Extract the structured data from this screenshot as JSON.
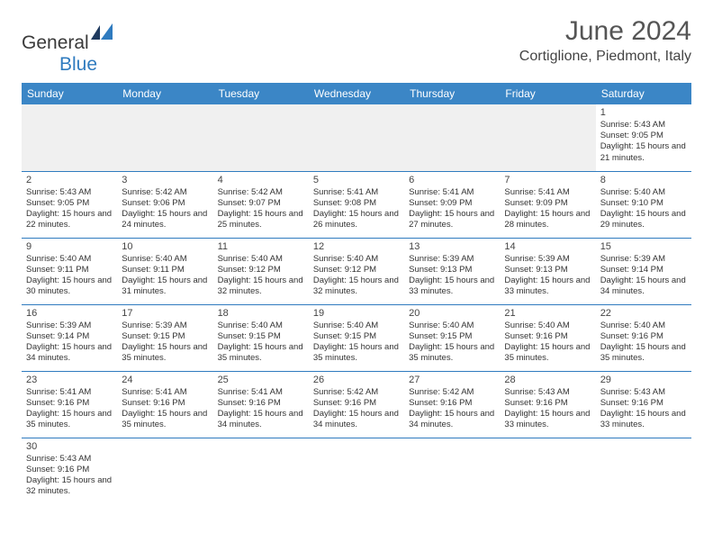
{
  "logo": {
    "textGray": "General",
    "textBlue": "Blue"
  },
  "header": {
    "title": "June 2024",
    "location": "Cortiglione, Piedmont, Italy"
  },
  "colors": {
    "headerBg": "#3b86c6",
    "rowBorder": "#2f7bbf",
    "blankBg": "#f0f0f0",
    "pageBg": "#ffffff"
  },
  "dayNames": [
    "Sunday",
    "Monday",
    "Tuesday",
    "Wednesday",
    "Thursday",
    "Friday",
    "Saturday"
  ],
  "weeks": [
    [
      null,
      null,
      null,
      null,
      null,
      null,
      {
        "n": "1",
        "sunrise": "Sunrise: 5:43 AM",
        "sunset": "Sunset: 9:05 PM",
        "daylight": "Daylight: 15 hours and 21 minutes."
      }
    ],
    [
      {
        "n": "2",
        "sunrise": "Sunrise: 5:43 AM",
        "sunset": "Sunset: 9:05 PM",
        "daylight": "Daylight: 15 hours and 22 minutes."
      },
      {
        "n": "3",
        "sunrise": "Sunrise: 5:42 AM",
        "sunset": "Sunset: 9:06 PM",
        "daylight": "Daylight: 15 hours and 24 minutes."
      },
      {
        "n": "4",
        "sunrise": "Sunrise: 5:42 AM",
        "sunset": "Sunset: 9:07 PM",
        "daylight": "Daylight: 15 hours and 25 minutes."
      },
      {
        "n": "5",
        "sunrise": "Sunrise: 5:41 AM",
        "sunset": "Sunset: 9:08 PM",
        "daylight": "Daylight: 15 hours and 26 minutes."
      },
      {
        "n": "6",
        "sunrise": "Sunrise: 5:41 AM",
        "sunset": "Sunset: 9:09 PM",
        "daylight": "Daylight: 15 hours and 27 minutes."
      },
      {
        "n": "7",
        "sunrise": "Sunrise: 5:41 AM",
        "sunset": "Sunset: 9:09 PM",
        "daylight": "Daylight: 15 hours and 28 minutes."
      },
      {
        "n": "8",
        "sunrise": "Sunrise: 5:40 AM",
        "sunset": "Sunset: 9:10 PM",
        "daylight": "Daylight: 15 hours and 29 minutes."
      }
    ],
    [
      {
        "n": "9",
        "sunrise": "Sunrise: 5:40 AM",
        "sunset": "Sunset: 9:11 PM",
        "daylight": "Daylight: 15 hours and 30 minutes."
      },
      {
        "n": "10",
        "sunrise": "Sunrise: 5:40 AM",
        "sunset": "Sunset: 9:11 PM",
        "daylight": "Daylight: 15 hours and 31 minutes."
      },
      {
        "n": "11",
        "sunrise": "Sunrise: 5:40 AM",
        "sunset": "Sunset: 9:12 PM",
        "daylight": "Daylight: 15 hours and 32 minutes."
      },
      {
        "n": "12",
        "sunrise": "Sunrise: 5:40 AM",
        "sunset": "Sunset: 9:12 PM",
        "daylight": "Daylight: 15 hours and 32 minutes."
      },
      {
        "n": "13",
        "sunrise": "Sunrise: 5:39 AM",
        "sunset": "Sunset: 9:13 PM",
        "daylight": "Daylight: 15 hours and 33 minutes."
      },
      {
        "n": "14",
        "sunrise": "Sunrise: 5:39 AM",
        "sunset": "Sunset: 9:13 PM",
        "daylight": "Daylight: 15 hours and 33 minutes."
      },
      {
        "n": "15",
        "sunrise": "Sunrise: 5:39 AM",
        "sunset": "Sunset: 9:14 PM",
        "daylight": "Daylight: 15 hours and 34 minutes."
      }
    ],
    [
      {
        "n": "16",
        "sunrise": "Sunrise: 5:39 AM",
        "sunset": "Sunset: 9:14 PM",
        "daylight": "Daylight: 15 hours and 34 minutes."
      },
      {
        "n": "17",
        "sunrise": "Sunrise: 5:39 AM",
        "sunset": "Sunset: 9:15 PM",
        "daylight": "Daylight: 15 hours and 35 minutes."
      },
      {
        "n": "18",
        "sunrise": "Sunrise: 5:40 AM",
        "sunset": "Sunset: 9:15 PM",
        "daylight": "Daylight: 15 hours and 35 minutes."
      },
      {
        "n": "19",
        "sunrise": "Sunrise: 5:40 AM",
        "sunset": "Sunset: 9:15 PM",
        "daylight": "Daylight: 15 hours and 35 minutes."
      },
      {
        "n": "20",
        "sunrise": "Sunrise: 5:40 AM",
        "sunset": "Sunset: 9:15 PM",
        "daylight": "Daylight: 15 hours and 35 minutes."
      },
      {
        "n": "21",
        "sunrise": "Sunrise: 5:40 AM",
        "sunset": "Sunset: 9:16 PM",
        "daylight": "Daylight: 15 hours and 35 minutes."
      },
      {
        "n": "22",
        "sunrise": "Sunrise: 5:40 AM",
        "sunset": "Sunset: 9:16 PM",
        "daylight": "Daylight: 15 hours and 35 minutes."
      }
    ],
    [
      {
        "n": "23",
        "sunrise": "Sunrise: 5:41 AM",
        "sunset": "Sunset: 9:16 PM",
        "daylight": "Daylight: 15 hours and 35 minutes."
      },
      {
        "n": "24",
        "sunrise": "Sunrise: 5:41 AM",
        "sunset": "Sunset: 9:16 PM",
        "daylight": "Daylight: 15 hours and 35 minutes."
      },
      {
        "n": "25",
        "sunrise": "Sunrise: 5:41 AM",
        "sunset": "Sunset: 9:16 PM",
        "daylight": "Daylight: 15 hours and 34 minutes."
      },
      {
        "n": "26",
        "sunrise": "Sunrise: 5:42 AM",
        "sunset": "Sunset: 9:16 PM",
        "daylight": "Daylight: 15 hours and 34 minutes."
      },
      {
        "n": "27",
        "sunrise": "Sunrise: 5:42 AM",
        "sunset": "Sunset: 9:16 PM",
        "daylight": "Daylight: 15 hours and 34 minutes."
      },
      {
        "n": "28",
        "sunrise": "Sunrise: 5:43 AM",
        "sunset": "Sunset: 9:16 PM",
        "daylight": "Daylight: 15 hours and 33 minutes."
      },
      {
        "n": "29",
        "sunrise": "Sunrise: 5:43 AM",
        "sunset": "Sunset: 9:16 PM",
        "daylight": "Daylight: 15 hours and 33 minutes."
      }
    ],
    [
      {
        "n": "30",
        "sunrise": "Sunrise: 5:43 AM",
        "sunset": "Sunset: 9:16 PM",
        "daylight": "Daylight: 15 hours and 32 minutes."
      },
      null,
      null,
      null,
      null,
      null,
      null
    ]
  ]
}
